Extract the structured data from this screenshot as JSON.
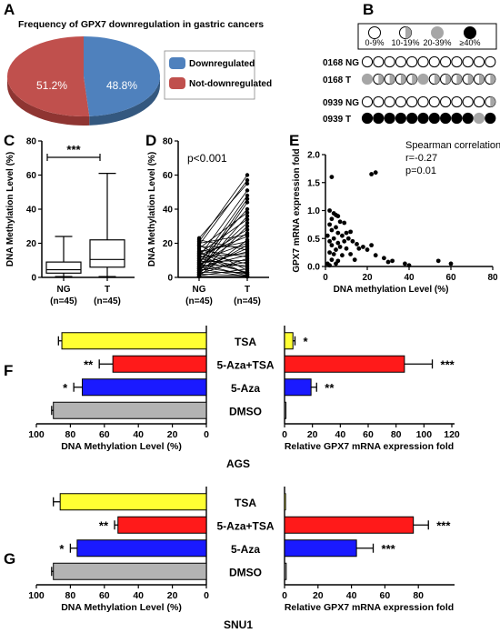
{
  "panels": {
    "A": "A",
    "B": "B",
    "C": "C",
    "D": "D",
    "E": "E",
    "F": "F",
    "G": "G"
  },
  "colors": {
    "blue": "#4f81bd",
    "red": "#c0504d",
    "yellow": "#ffff33",
    "bar_red": "#ff1a1a",
    "bar_blue": "#1a1aff",
    "gray": "#b3b3b3",
    "gray_dot": "#a6a6a6"
  },
  "panel_B": {
    "legend": [
      "0-9%",
      "10-19%",
      "20-39%",
      "≥40%"
    ],
    "rows": [
      {
        "label": "0168 NG",
        "states": [
          "empty",
          "empty",
          "empty",
          "empty",
          "empty",
          "empty",
          "empty",
          "empty",
          "empty",
          "empty",
          "empty",
          "empty"
        ]
      },
      {
        "label": "0168 T",
        "states": [
          "gray",
          "half",
          "half",
          "half",
          "half",
          "gray",
          "half",
          "half",
          "half",
          "half",
          "half",
          "half"
        ]
      },
      {
        "label": "0939 NG",
        "states": [
          "empty",
          "empty",
          "empty",
          "empty",
          "empty",
          "empty",
          "empty",
          "empty",
          "empty",
          "empty",
          "empty",
          "half"
        ]
      },
      {
        "label": "0939 T",
        "states": [
          "black",
          "black",
          "black",
          "black",
          "black",
          "black",
          "black",
          "black",
          "black",
          "black",
          "gray",
          "black"
        ]
      }
    ]
  },
  "chart_data": [
    {
      "panel": "A",
      "type": "pie",
      "title": "Frequency of GPX7 downregulation in gastric cancers",
      "slices": [
        {
          "name": "Downregulated",
          "value": 48.8,
          "label": "48.8%"
        },
        {
          "name": "Not-downregulated",
          "value": 51.2,
          "label": "51.2%"
        }
      ]
    },
    {
      "panel": "C",
      "type": "box",
      "ylabel": "DNA Methylation Level (%)",
      "ylim": [
        0,
        80
      ],
      "yticks": [
        "0",
        "20",
        "40",
        "60",
        "80"
      ],
      "categories": [
        "NG\n(n=45)",
        "T\n(n=45)"
      ],
      "category_labels": [
        [
          "NG",
          "(n=45)"
        ],
        [
          "T",
          "(n=45)"
        ]
      ],
      "boxes": [
        {
          "min": 0.5,
          "q1": 2.5,
          "median": 4.5,
          "q3": 9,
          "max": 24
        },
        {
          "min": 0.5,
          "q1": 6,
          "median": 10.5,
          "q3": 22,
          "max": 61
        }
      ],
      "annotation": "***"
    },
    {
      "panel": "D",
      "type": "paired-line",
      "annotation": "p<0.001",
      "ylabel": "DNA Methylation Level (%)",
      "ylim": [
        0,
        80
      ],
      "yticks": [
        "0",
        "20",
        "40",
        "60",
        "80"
      ],
      "categories": [
        "NG\n(n=45)",
        "T\n(n=45)"
      ],
      "category_labels": [
        [
          "NG",
          "(n=45)"
        ],
        [
          "T",
          "(n=45)"
        ]
      ],
      "pairs": [
        [
          21,
          60
        ],
        [
          19,
          57
        ],
        [
          23,
          55
        ],
        [
          12,
          51
        ],
        [
          8,
          48
        ],
        [
          5,
          46
        ],
        [
          3,
          44
        ],
        [
          9,
          40
        ],
        [
          17,
          38
        ],
        [
          4,
          36
        ],
        [
          14,
          34
        ],
        [
          6,
          32
        ],
        [
          2,
          30
        ],
        [
          11,
          28
        ],
        [
          7,
          26
        ],
        [
          20,
          25
        ],
        [
          13,
          24
        ],
        [
          1,
          22
        ],
        [
          15,
          21
        ],
        [
          10,
          20
        ],
        [
          3,
          19
        ],
        [
          18,
          18
        ],
        [
          5,
          17
        ],
        [
          22,
          16
        ],
        [
          8,
          15
        ],
        [
          12,
          14
        ],
        [
          6,
          13
        ],
        [
          16,
          12
        ],
        [
          2,
          11
        ],
        [
          9,
          10
        ],
        [
          4,
          9
        ],
        [
          14,
          8
        ],
        [
          7,
          7
        ],
        [
          11,
          6
        ],
        [
          1,
          5
        ],
        [
          19,
          4
        ],
        [
          3,
          3
        ],
        [
          10,
          3
        ],
        [
          6,
          2
        ],
        [
          13,
          2
        ],
        [
          2,
          1
        ],
        [
          8,
          1
        ],
        [
          5,
          0.5
        ],
        [
          0.5,
          0.5
        ],
        [
          15,
          2
        ]
      ]
    },
    {
      "panel": "E",
      "type": "scatter",
      "annotation": [
        "Spearman correlation",
        "r=-0.27",
        "p=0.01"
      ],
      "xlabel": "DNA methylation Level (%)",
      "ylabel": "GPX7 mRNA expression fold",
      "xlim": [
        0,
        80
      ],
      "ylim": [
        0,
        2.0
      ],
      "xticks": [
        "0",
        "20",
        "40",
        "60",
        "80"
      ],
      "yticks": [
        "0.0",
        "0.5",
        "1.0",
        "1.5",
        "2.0"
      ],
      "points": [
        [
          3,
          1.6
        ],
        [
          22,
          1.65
        ],
        [
          24,
          1.68
        ],
        [
          2,
          1.0
        ],
        [
          4,
          0.95
        ],
        [
          5,
          0.92
        ],
        [
          3,
          0.85
        ],
        [
          6,
          0.9
        ],
        [
          2,
          0.75
        ],
        [
          7,
          0.8
        ],
        [
          9,
          0.78
        ],
        [
          3,
          0.65
        ],
        [
          5,
          0.7
        ],
        [
          6,
          0.6
        ],
        [
          1,
          0.55
        ],
        [
          8,
          0.55
        ],
        [
          10,
          0.6
        ],
        [
          12,
          0.62
        ],
        [
          11,
          0.5
        ],
        [
          4,
          0.5
        ],
        [
          2,
          0.45
        ],
        [
          6,
          0.42
        ],
        [
          9,
          0.45
        ],
        [
          13,
          0.45
        ],
        [
          15,
          0.4
        ],
        [
          3,
          0.38
        ],
        [
          7,
          0.35
        ],
        [
          5,
          0.3
        ],
        [
          10,
          0.32
        ],
        [
          16,
          0.32
        ],
        [
          18,
          0.35
        ],
        [
          20,
          0.3
        ],
        [
          22,
          0.38
        ],
        [
          2,
          0.25
        ],
        [
          4,
          0.22
        ],
        [
          8,
          0.2
        ],
        [
          12,
          0.22
        ],
        [
          24,
          0.2
        ],
        [
          28,
          0.15
        ],
        [
          3,
          0.12
        ],
        [
          6,
          0.1
        ],
        [
          14,
          0.12
        ],
        [
          30,
          0.08
        ],
        [
          32,
          0.1
        ],
        [
          1,
          0.05
        ],
        [
          5,
          0.05
        ],
        [
          38,
          0.05
        ],
        [
          54,
          0.1
        ],
        [
          60,
          0.05
        ],
        [
          40,
          0.02
        ],
        [
          2,
          0.02
        ]
      ]
    },
    {
      "panel": "F",
      "type": "bar",
      "cell_line": "AGS",
      "categories": [
        "TSA",
        "5-Aza+TSA",
        "5-Aza",
        "DMSO"
      ],
      "left": {
        "xlabel": "DNA Methylation Level (%)",
        "xlim": [
          100,
          0
        ],
        "xticks": [
          "100",
          "80",
          "60",
          "40",
          "20",
          "0"
        ],
        "values": [
          85,
          55,
          73,
          90
        ],
        "errors": [
          2,
          8,
          5,
          1
        ],
        "annotations": [
          "",
          "**",
          "*",
          ""
        ]
      },
      "right": {
        "xlabel": "Relative GPX7 mRNA expression fold",
        "xlim": [
          0,
          120
        ],
        "xticks": [
          "0",
          "20",
          "40",
          "60",
          "80",
          "100",
          "120"
        ],
        "values": [
          6,
          86,
          19,
          1
        ],
        "errors": [
          1.5,
          20,
          4,
          0.3
        ],
        "annotations": [
          "*",
          "***",
          "**",
          ""
        ]
      }
    },
    {
      "panel": "G",
      "type": "bar",
      "cell_line": "SNU1",
      "categories": [
        "TSA",
        "5-Aza+TSA",
        "5-Aza",
        "DMSO"
      ],
      "left": {
        "xlabel": "DNA Methylation Level (%)",
        "xlim": [
          100,
          0
        ],
        "xticks": [
          "100",
          "80",
          "60",
          "40",
          "20",
          "0"
        ],
        "values": [
          86,
          52,
          76,
          90
        ],
        "errors": [
          4,
          2,
          4,
          1
        ],
        "annotations": [
          "",
          "**",
          "*",
          ""
        ]
      },
      "right": {
        "xlabel": "Relative GPX7 mRNA expression fold",
        "xlim": [
          0,
          100
        ],
        "xticks": [
          "0",
          "20",
          "40",
          "60",
          "80"
        ],
        "values": [
          0.5,
          77,
          43,
          1
        ],
        "errors": [
          0.2,
          9,
          10,
          0.2
        ],
        "annotations": [
          "",
          "***",
          "***",
          ""
        ]
      }
    }
  ]
}
